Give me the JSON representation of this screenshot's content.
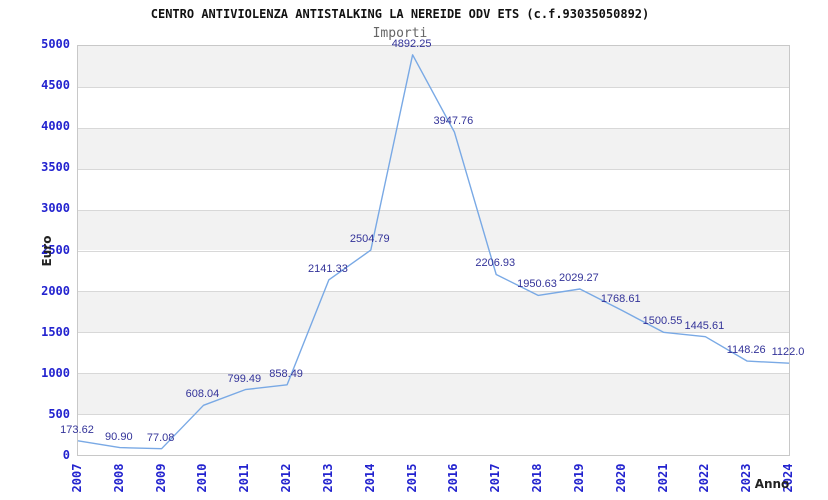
{
  "header": {
    "title": "CENTRO ANTIVIOLENZA ANTISTALKING LA NEREIDE ODV ETS (c.f.93035050892)",
    "subtitle": "Importi"
  },
  "chart_data": {
    "type": "line",
    "title": "Importi",
    "xlabel": "Anno",
    "ylabel": "Euro",
    "categories": [
      "2007",
      "2008",
      "2009",
      "2010",
      "2011",
      "2012",
      "2013",
      "2014",
      "2015",
      "2016",
      "2017",
      "2018",
      "2019",
      "2020",
      "2021",
      "2022",
      "2023",
      "2024"
    ],
    "values": [
      173.62,
      90.9,
      77.08,
      608.04,
      799.49,
      858.49,
      2141.33,
      2504.79,
      4892.25,
      3947.76,
      2206.93,
      1950.63,
      2029.27,
      1768.61,
      1500.55,
      1445.61,
      1148.26,
      1122.0
    ],
    "value_labels": [
      "173.62",
      "90.90",
      "77.08",
      "608.04",
      "799.49",
      "858.49",
      "2141.33",
      "2504.79",
      "4892.25",
      "3947.76",
      "2206.93",
      "1950.63",
      "2029.27",
      "1768.61",
      "1500.55",
      "1445.61",
      "1148.26",
      "1122.0"
    ],
    "ylim": [
      0,
      5000
    ],
    "ytick_step": 500,
    "grid": "horizontal-bands",
    "legend": "none",
    "colors": {
      "line": "#79a9e5",
      "band": "#f2f2f2",
      "band_alt": "#ffffff",
      "gridline": "#d8d8d8",
      "plot_border": "#c8c8c8",
      "tick_text": "#2323cf",
      "value_text": "#333399",
      "title_text": "#111111",
      "subtitle_text": "#666666",
      "axis_title_text": "#222222"
    }
  }
}
